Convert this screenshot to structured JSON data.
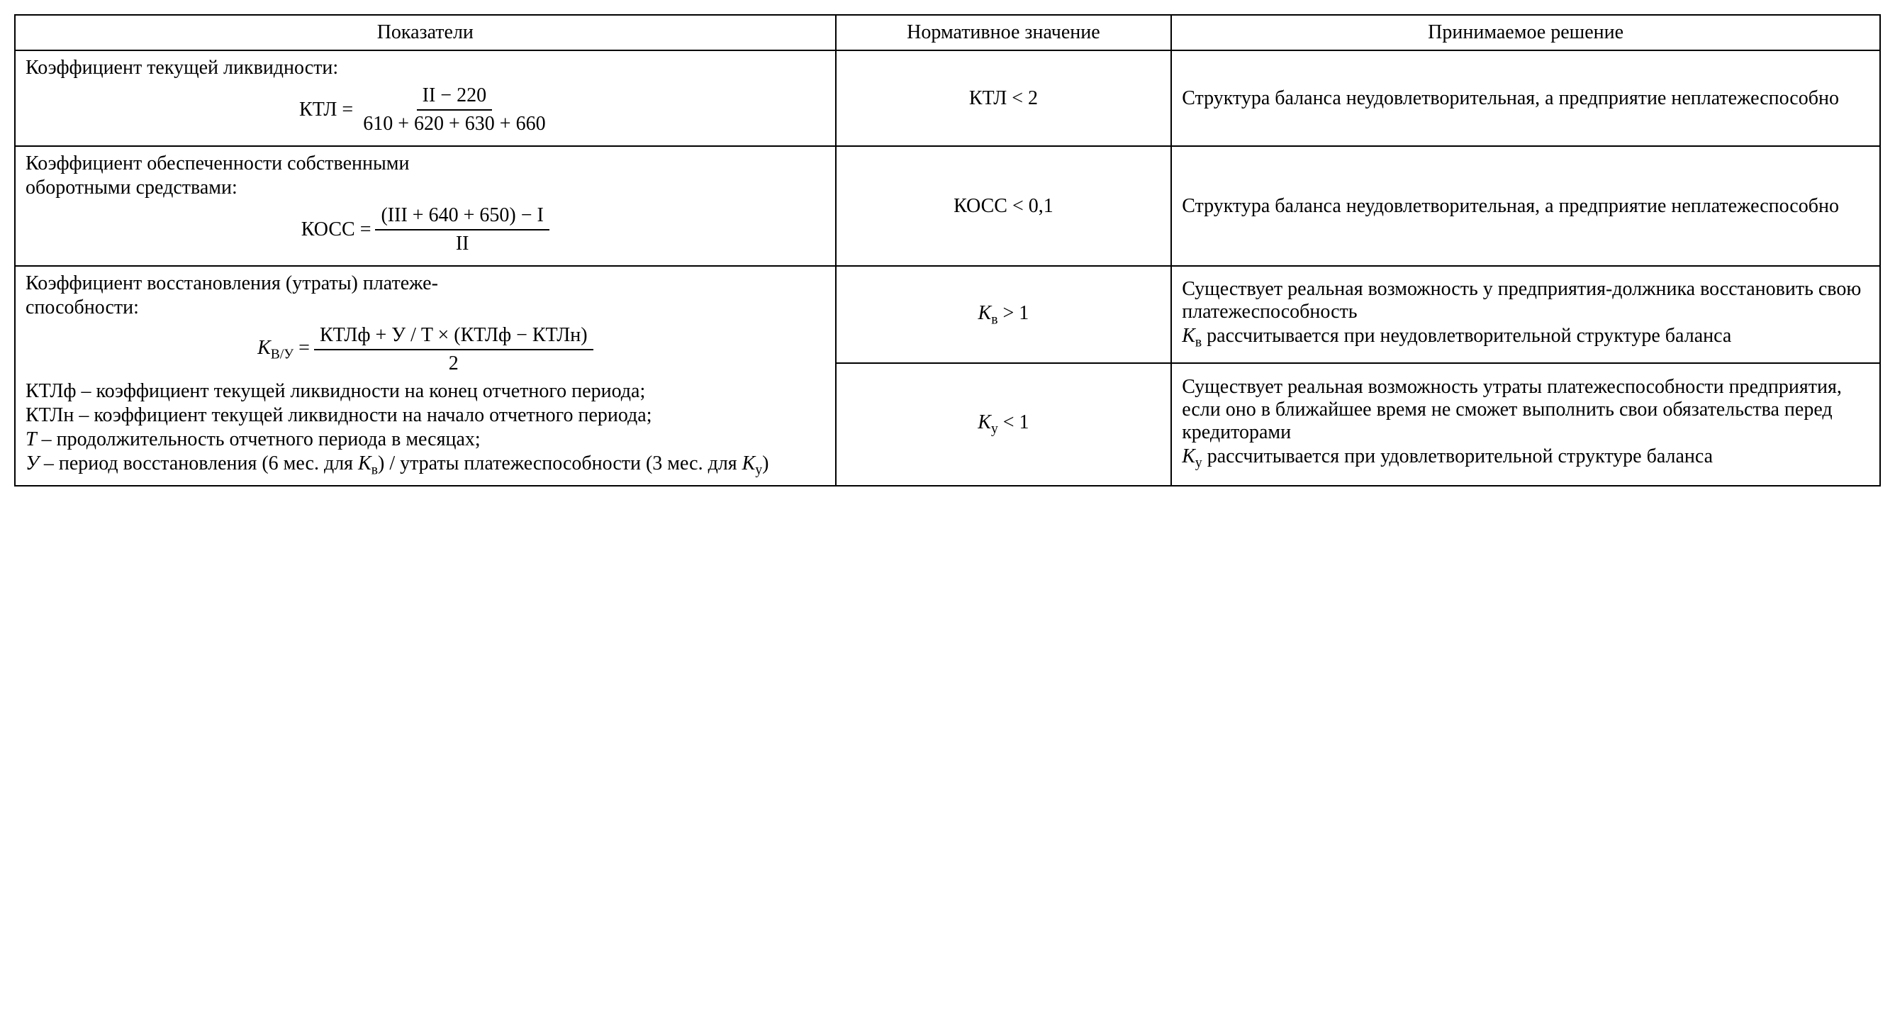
{
  "table": {
    "border_color": "#000000",
    "font_family": "Times New Roman",
    "font_size_pt": 21,
    "column_widths_pct": [
      44,
      18,
      38
    ],
    "headers": {
      "c1": "Показатели",
      "c2": "Нормативное значение",
      "c3": "Принимаемое решение"
    },
    "row1": {
      "title": "Коэффициент текущей ликвидности:",
      "formula": {
        "lhs": "КТЛ =",
        "numerator": "II  −  220",
        "denominator": "610  +  620  +  630  +  660"
      },
      "norm": "КТЛ < 2",
      "decision": "Структура баланса неудовлетворительная, а предприятие неплатежеспособно"
    },
    "row2": {
      "title1": "Коэффициент обеспеченности собственными",
      "title2": "оборотными средствами:",
      "formula": {
        "lhs": "КОСС =",
        "numerator": "(III  +  640  +  650)  −  I",
        "denominator": "II"
      },
      "norm": "КОСС < 0,1",
      "decision": "Структура баланса неудовлетворительная, а предприятие неплатежеспособно"
    },
    "row3": {
      "title1": "Коэффициент восстановления (утраты) платеже-",
      "title2": "способности:",
      "formula": {
        "lhs_var": "K",
        "lhs_sub": "В/У",
        "lhs_eq": " =",
        "numerator": "КТЛф  +  У / T  ×  (КТЛф  −  КТЛн)",
        "denominator": "2"
      },
      "legend": [
        "КТЛф – коэффициент текущей ликвидности на конец отчетного периода;",
        "КТЛн – коэффициент текущей ликвидности на начало отчетного периода;",
        "T – продолжительность отчетного периода в месяцах;",
        "У – период восстановления (6 мес. для Kв) / утраты платежеспособности (3 мес. для Kу)"
      ],
      "normA_var": "K",
      "normA_sub": "в",
      "normA_rest": " > 1",
      "decisionA": "Существует реальная возможность у предприятия-должника восстановить свою платежеспособность",
      "decisionA2_pre": "K",
      "decisionA2_sub": "в",
      "decisionA2_rest": " рассчитывается при неудовлетворительной структуре баланса",
      "normB_var": "K",
      "normB_sub": "у",
      "normB_rest": " < 1",
      "decisionB": "Существует реальная возможность утраты платежеспособности предприятия, если оно в ближайшее время не сможет выполнить свои обязательства перед кредиторами",
      "decisionB2_pre": "K",
      "decisionB2_sub": "у",
      "decisionB2_rest": " рассчитывается при удовлетворительной структуре баланса"
    }
  }
}
